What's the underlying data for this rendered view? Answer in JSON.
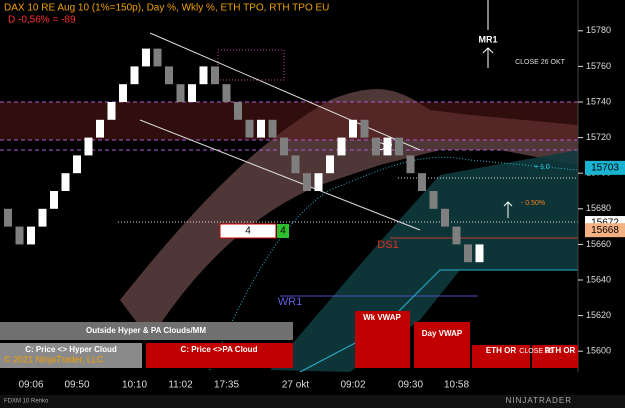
{
  "chart_data": {
    "type": "renko",
    "title": "DAX 10 RE Aug 10 (1%=150p), Day %, Wkly %, ETH TPO, RTH TPO EU",
    "subtitle": "D -0,56% = -89",
    "categories": [
      null,
      null,
      "09:06",
      null,
      null,
      null,
      "09:50",
      null,
      null,
      null,
      null,
      "10:10",
      null,
      null,
      null,
      "11:02",
      null,
      null,
      null,
      "17:35",
      null,
      null,
      null,
      null,
      null,
      "27 okt",
      null,
      null,
      null,
      null,
      "09:02",
      null,
      null,
      null,
      null,
      "09:30",
      null,
      null,
      null,
      "10:58",
      null,
      null
    ],
    "values": [
      15670,
      15660,
      15670,
      15680,
      15690,
      15700,
      15710,
      15720,
      15730,
      15740,
      15750,
      15760,
      15770,
      15760,
      15750,
      15740,
      15750,
      15760,
      15750,
      15740,
      15730,
      15720,
      15730,
      15720,
      15710,
      15700,
      15690,
      15700,
      15710,
      15720,
      15730,
      15720,
      15710,
      15720,
      15710,
      15700,
      15690,
      15680,
      15670,
      15660,
      15650,
      15660
    ],
    "up_color": "#ffffff",
    "down_color": "#7f7f7f",
    "ylim": [
      15590,
      15790
    ],
    "yticks": [
      15600,
      15620,
      15640,
      15660,
      15680,
      15700,
      15720,
      15740,
      15760,
      15780
    ],
    "price_markers": [
      {
        "value": 15703,
        "color": "#19b3d1"
      },
      {
        "value": 15672,
        "color": "#ffffff"
      },
      {
        "value": 15668,
        "color": "#f4b183"
      }
    ],
    "annotations": {
      "mr1": "MR1",
      "close": "CLOSE 26 OKT",
      "dp": "DP",
      "ds1": "DS1",
      "wr1": "WR1",
      "minus": "- 0.50%",
      "plus": "+ 1.0",
      "box1": "4",
      "box2": "4"
    },
    "buttons": {
      "outside": "Outside Hyper & PA Clouds/MM",
      "hyper": "C: Price <> Hyper Cloud",
      "pa": "C: Price <>PA Cloud",
      "wk": "Wk VWAP",
      "day": "Day VWAP",
      "eth": "ETH OR",
      "close": "CLOSE 26",
      "rth": "RTH OR"
    },
    "copyright": "© 2021 NinjaTrader, LLC",
    "instrument": "FDXM 10 Renko",
    "brand": "NINJATRADER"
  }
}
